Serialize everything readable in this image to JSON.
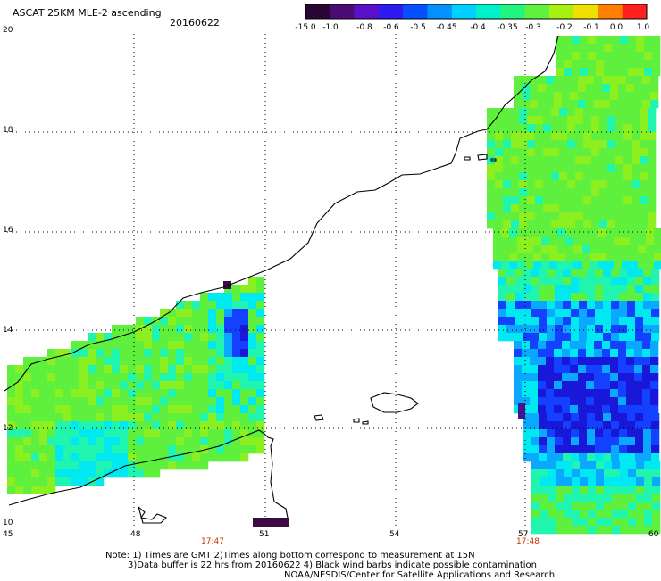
{
  "header": {
    "title": "ASCAT 25KM MLE-2 ascending",
    "date": "20160622"
  },
  "colorbar": {
    "labels": [
      "-15.0",
      "-1.0",
      "-0.8",
      "-0.6",
      "-0.5",
      "-0.45",
      "-0.4",
      "-0.35",
      "-0.3",
      "-0.2",
      "-0.1",
      "0.0",
      "1.0"
    ],
    "colors": [
      "#2a0636",
      "#4b0d74",
      "#5a10c8",
      "#2f1bf2",
      "#0750ff",
      "#0590ff",
      "#00d0ff",
      "#00f0c8",
      "#20f580",
      "#60f040",
      "#a8f010",
      "#f0e000",
      "#ff8000",
      "#ff2020"
    ]
  },
  "map": {
    "lat_labels": [
      "20",
      "18",
      "16",
      "14",
      "12",
      "10"
    ],
    "lon_labels": [
      "45",
      "48",
      "51",
      "54",
      "57",
      "60"
    ],
    "time_labels": [
      "17:47",
      "17:48"
    ],
    "swath_colors": {
      "green": "#5ef03c",
      "lime": "#8cf020",
      "aqua": "#20f5b0",
      "cyan": "#00e8f0",
      "sky": "#0aa8ff",
      "blue": "#1440ff",
      "deep": "#1a18d8",
      "violet": "#4a1090",
      "dark": "#3a0a40"
    }
  },
  "notes": {
    "line1": "Note: 1) Times are GMT 2)Times along bottom correspond to measurement at 15N",
    "line2": "3)Data buffer is 22 hrs from 20160622 4) Black wind barbs indicate possible contamination",
    "line3": "NOAA/NESDIS/Center for Satellite Applications and Research"
  }
}
